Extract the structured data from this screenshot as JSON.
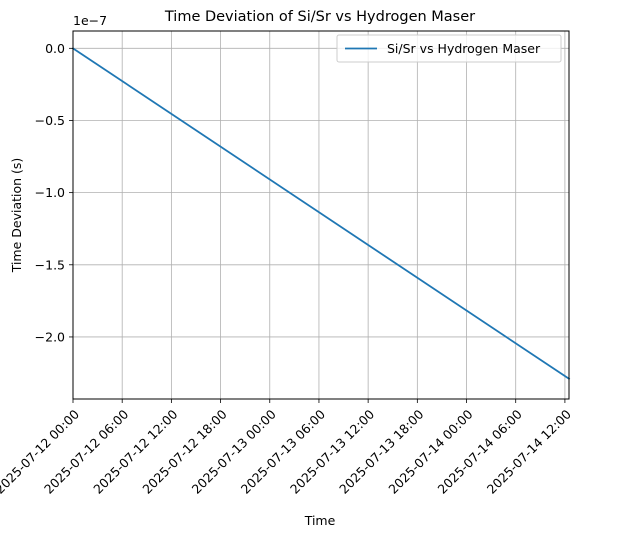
{
  "chart_data": {
    "type": "line",
    "title": "Time Deviation of Si/Sr vs Hydrogen Maser",
    "xlabel": "Time",
    "ylabel": "Time Deviation (s)",
    "y_offset_label": "1e−7",
    "y_scale_exponent": -7,
    "xlim": [
      "2025-07-12 00:00",
      "2025-07-14 12:30"
    ],
    "ylim": [
      -2.43e-07,
      1.2e-08
    ],
    "x_ticks": [
      "2025-07-12 00:00",
      "2025-07-12 06:00",
      "2025-07-12 12:00",
      "2025-07-12 18:00",
      "2025-07-13 00:00",
      "2025-07-13 06:00",
      "2025-07-13 12:00",
      "2025-07-13 18:00",
      "2025-07-14 00:00",
      "2025-07-14 06:00",
      "2025-07-14 12:00"
    ],
    "y_ticks": [
      0.0,
      -5e-08,
      -1e-07,
      -1.5e-07,
      -2e-07
    ],
    "y_tick_labels": [
      "0.0",
      "−0.5",
      "−1.0",
      "−1.5",
      "−2.0"
    ],
    "grid": true,
    "legend_position": "top-right",
    "series": [
      {
        "name": "Si/Sr vs Hydrogen Maser",
        "color": "#1f77b4",
        "x": [
          "2025-07-12 00:00",
          "2025-07-14 12:30"
        ],
        "y": [
          0.0,
          -2.29e-07
        ]
      }
    ]
  }
}
